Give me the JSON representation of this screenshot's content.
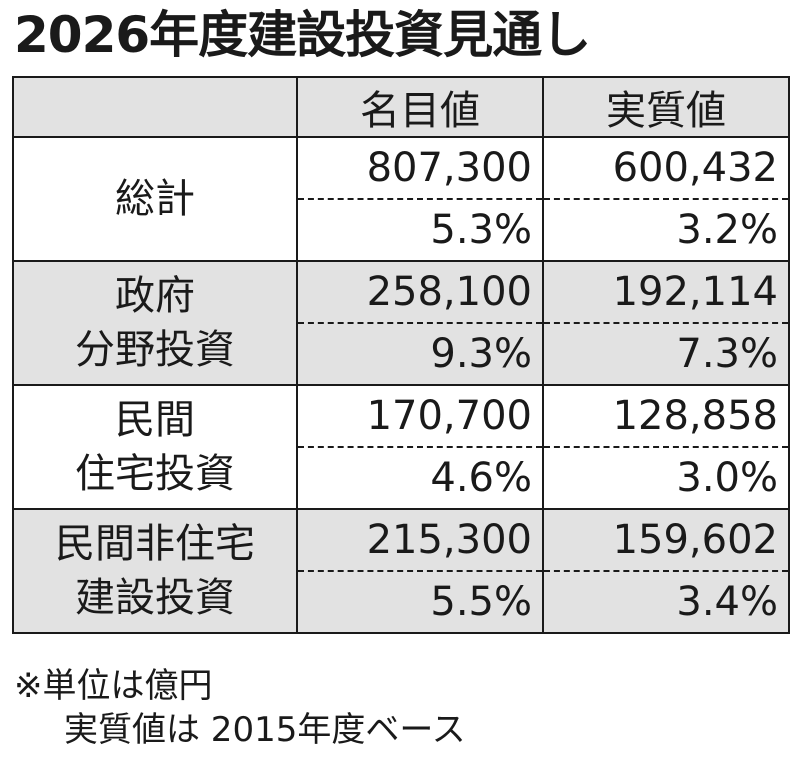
{
  "title": "2026年度建設投資見通し",
  "table": {
    "headers": [
      "",
      "名目値",
      "実質値"
    ],
    "rows": [
      {
        "label_line1": "総計",
        "label_line2": "",
        "nominal": "807,300",
        "nominal_pct": "5.3%",
        "real": "600,432",
        "real_pct": "3.2%"
      },
      {
        "label_line1": "政府",
        "label_line2": "分野投資",
        "nominal": "258,100",
        "nominal_pct": "9.3%",
        "real": "192,114",
        "real_pct": "7.3%"
      },
      {
        "label_line1": "民間",
        "label_line2": "住宅投資",
        "nominal": "170,700",
        "nominal_pct": "4.6%",
        "real": "128,858",
        "real_pct": "3.0%"
      },
      {
        "label_line1": "民間非住宅",
        "label_line2": "建設投資",
        "nominal": "215,300",
        "nominal_pct": "5.5%",
        "real": "159,602",
        "real_pct": "3.4%"
      }
    ]
  },
  "notes": {
    "line1": "※単位は億円",
    "line2": "実質値は 2015年度ベース"
  }
}
